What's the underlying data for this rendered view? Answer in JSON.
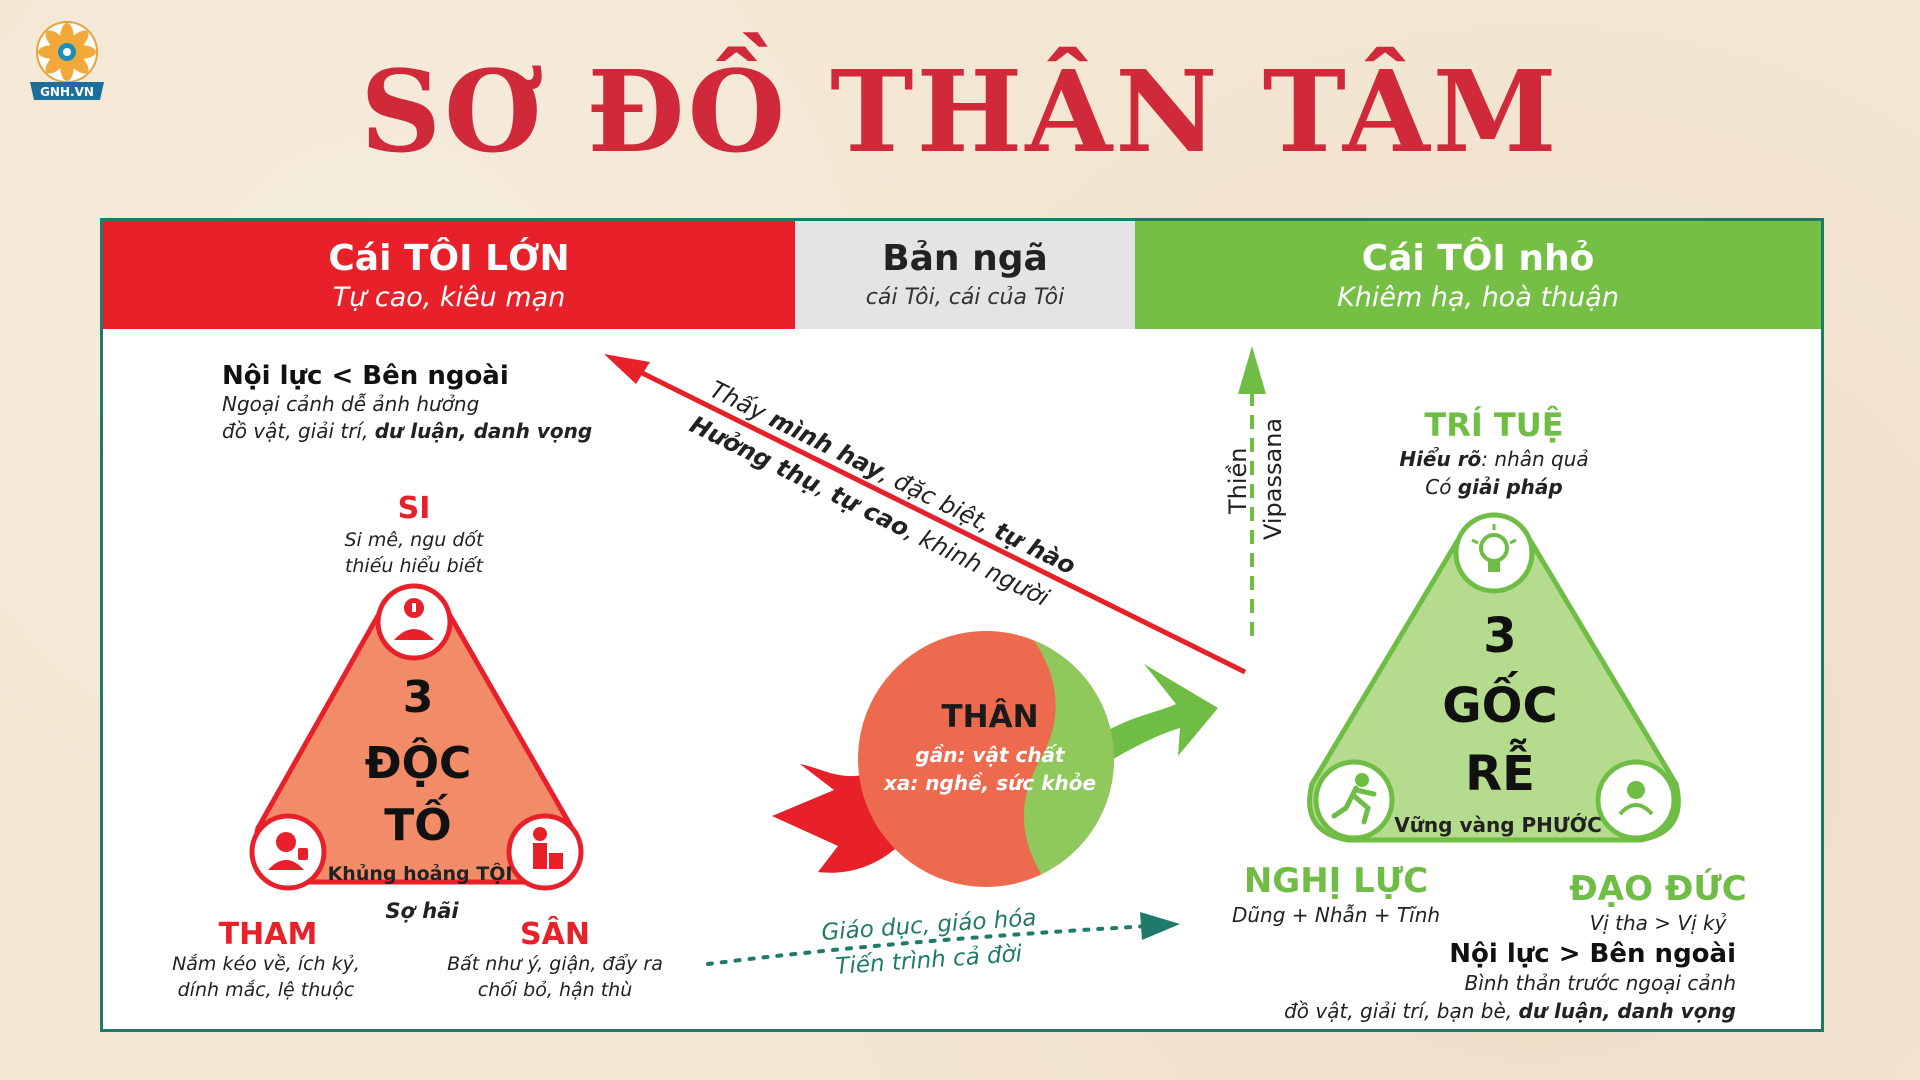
{
  "logo": {
    "text": "GNH.VN"
  },
  "title": "SƠ ĐỒ THÂN TÂM",
  "header": {
    "left": {
      "title": "Cái TÔI LỚN",
      "subtitle": "Tự cao, kiêu mạn"
    },
    "center": {
      "title": "Bản ngã",
      "subtitle": "cái Tôi, cái của Tôi"
    },
    "right": {
      "title": "Cái TÔI nhỏ",
      "subtitle": "Khiêm hạ, hoà thuận"
    }
  },
  "left_top": {
    "title": "Nội lực < Bên ngoài",
    "line1": "Ngoại cảnh dễ ảnh hưởng",
    "line2_plain": "đồ vật, giải trí, ",
    "line2_bold": "dư luận, danh vọng"
  },
  "doc_to": {
    "center": [
      "3",
      "ĐỘC",
      "TỐ"
    ],
    "base_label": "Khủng hoảng TỘI",
    "under_label": "Sợ hãi",
    "si": {
      "name": "SI",
      "line1": "Si mê, ngu dốt",
      "line2": "thiếu hiểu biết"
    },
    "tham": {
      "name": "THAM",
      "line1": "Nắm kéo về, ích kỷ,",
      "line2": "dính mắc, lệ thuộc"
    },
    "san": {
      "name": "SÂN",
      "line1": "Bất như ý, giận, đẩy ra",
      "line2": "chối bỏ, hận thù"
    }
  },
  "arrow_text": {
    "line1": [
      "Thấy ",
      "mình hay",
      ", đặc biệt, ",
      "tự hào"
    ],
    "line2": [
      "Hưởng thụ",
      ", ",
      "tự cao",
      ", khinh người"
    ]
  },
  "meditation": {
    "a": "Thiền",
    "b": "Vipassana"
  },
  "than": {
    "title": "THÂN",
    "line1": "gần: vật chất",
    "line2": "xa: nghề, sức khỏe"
  },
  "education": {
    "line1": "Giáo dục, giáo hóa",
    "line2": "Tiến trình cả đời"
  },
  "goc_re": {
    "center": [
      "3",
      "GỐC",
      "RỄ"
    ],
    "base_label": "Vững vàng PHƯỚC",
    "tri_tue": {
      "name": "TRÍ TUỆ",
      "line1_bold": "Hiểu rõ",
      "line1_plain": ": nhân quả",
      "line2_plain": "Có ",
      "line2_bold": "giải pháp"
    },
    "nghi_luc": {
      "name": "NGHỊ LỰC",
      "line1": "Dũng + Nhẫn + Tĩnh"
    },
    "dao_duc": {
      "name": "ĐẠO ĐỨC",
      "line1": "Vị tha > Vị kỷ"
    }
  },
  "right_bottom": {
    "title": "Nội lực > Bên ngoài",
    "line1": "Bình thản trước ngoại cảnh",
    "line2_plain": "đồ vật, giải trí, bạn bè, ",
    "line2_bold": "dư luận, danh vọng"
  },
  "colors": {
    "red": "#e8202a",
    "title_red": "#d02a3a",
    "green": "#74bf44",
    "light_green": "#b5db8e",
    "salmon": "#f28c68",
    "teal": "#1f7a6a"
  }
}
